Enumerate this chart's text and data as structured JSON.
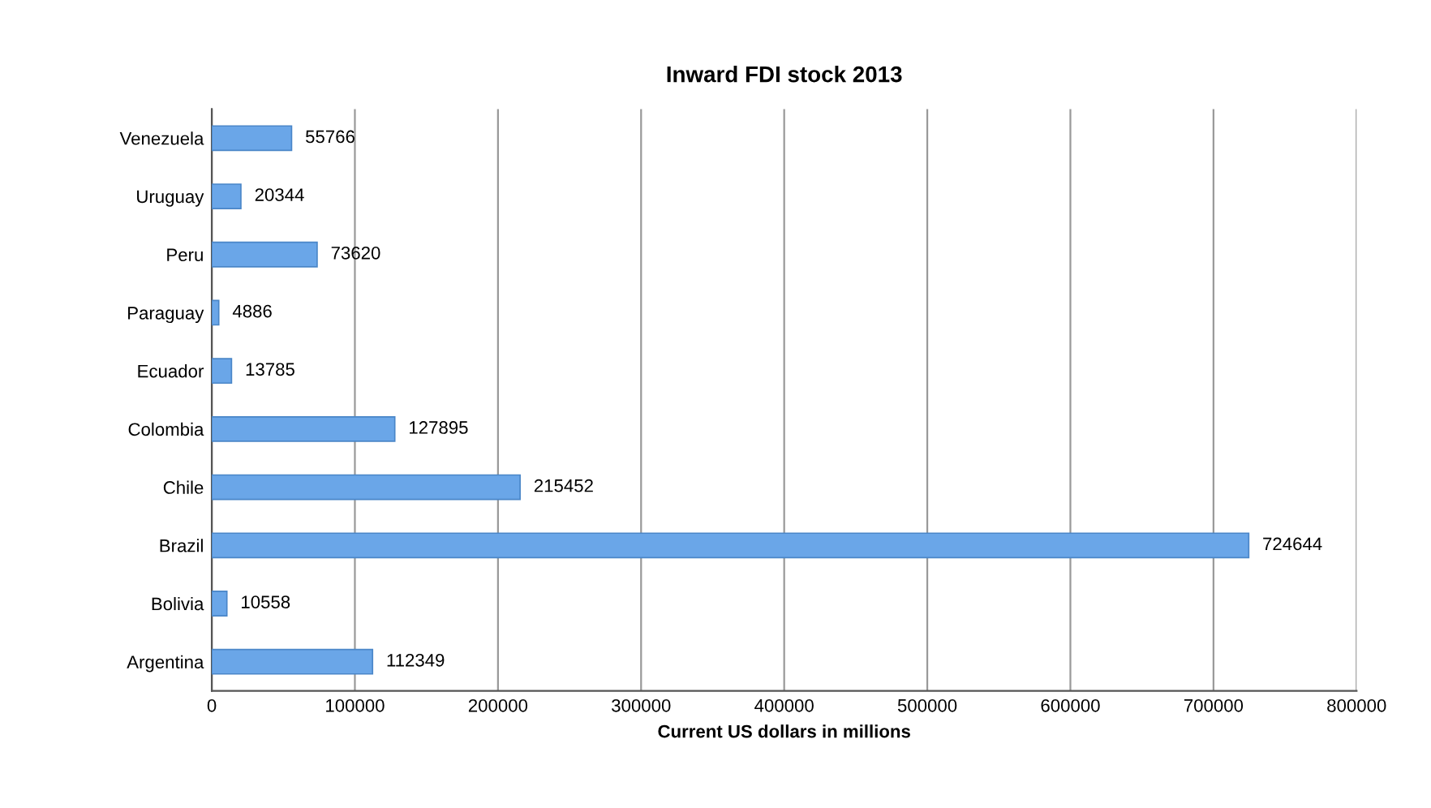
{
  "chart_data": {
    "type": "bar",
    "orientation": "horizontal",
    "title": "Inward FDI stock 2013",
    "xlabel": "Current US dollars in millions",
    "categories": [
      "Venezuela",
      "Uruguay",
      "Peru",
      "Paraguay",
      "Ecuador",
      "Colombia",
      "Chile",
      "Brazil",
      "Bolivia",
      "Argentina"
    ],
    "values": [
      55766,
      20344,
      73620,
      4886,
      13785,
      127895,
      215452,
      724644,
      10558,
      112349
    ],
    "color": "#6aa6e8",
    "xlim": [
      0,
      800000
    ],
    "xticks": [
      0,
      100000,
      200000,
      300000,
      400000,
      500000,
      600000,
      700000,
      800000
    ],
    "grid": "x",
    "data_labels": true
  }
}
